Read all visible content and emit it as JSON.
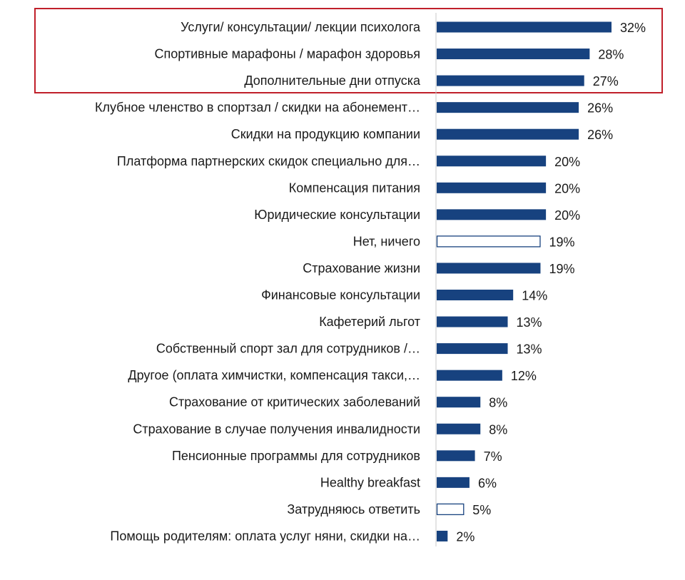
{
  "chart_data": {
    "type": "bar",
    "orientation": "horizontal",
    "title": "",
    "xlabel": "",
    "ylabel": "",
    "xlim": [
      0,
      32
    ],
    "grid": false,
    "value_format": "percent",
    "colors": {
      "bar": "#17427f",
      "hollow_outline": "#17427f",
      "highlight_box": "#c0202a",
      "axis": "#c8c8c8"
    },
    "highlighted_categories": [
      0,
      1,
      2
    ],
    "categories": [
      "Услуги/ консультации/ лекции психолога",
      "Спортивные марафоны / марафон здоровья",
      "Дополнительные дни отпуска",
      "Клубное членство в спортзал / скидки на абонемент…",
      "Скидки на продукцию компании",
      "Платформа партнерских скидок специально для…",
      "Компенсация питания",
      "Юридические консультации",
      "Нет, ничего",
      "Страхование жизни",
      "Финансовые консультации",
      "Кафетерий льгот",
      "Собственный спорт зал для сотрудников /…",
      "Другое (оплата химчистки, компенсация такси,…",
      "Страхование от критических заболеваний",
      "Страхование в случае получения инвалидности",
      "Пенсионные программы для сотрудников",
      "Healthy breakfast",
      "Затрудняюсь ответить",
      "Помощь родителям: оплата услуг няни, скидки на…"
    ],
    "values": [
      32,
      28,
      27,
      26,
      26,
      20,
      20,
      20,
      19,
      19,
      14,
      13,
      13,
      12,
      8,
      8,
      7,
      6,
      5,
      2
    ],
    "value_labels": [
      "32%",
      "28%",
      "27%",
      "26%",
      "26%",
      "20%",
      "20%",
      "20%",
      "19%",
      "19%",
      "14%",
      "13%",
      "13%",
      "12%",
      "8%",
      "8%",
      "7%",
      "6%",
      "5%",
      "2%"
    ],
    "hollow": [
      false,
      false,
      false,
      false,
      false,
      false,
      false,
      false,
      true,
      false,
      false,
      false,
      false,
      false,
      false,
      false,
      false,
      false,
      true,
      false
    ]
  }
}
